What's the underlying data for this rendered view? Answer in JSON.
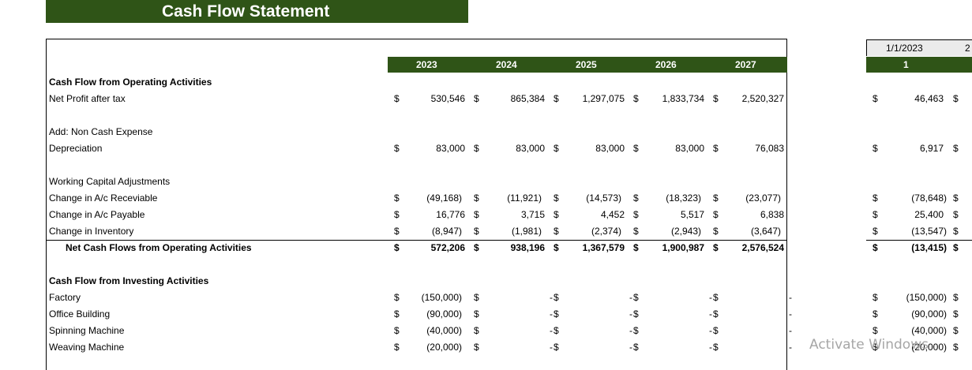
{
  "title": "Cash Flow Statement",
  "years": [
    "2023",
    "2024",
    "2025",
    "2026",
    "2027"
  ],
  "right_panel": {
    "date1": "1/1/2023",
    "date2": "2",
    "period": "1"
  },
  "currency": "$",
  "rows": [
    {
      "label": "Cash Flow from Operating Activities",
      "style": "section",
      "values": null,
      "right": null
    },
    {
      "label": "Net Profit after tax",
      "style": "normal",
      "values": [
        "530,546",
        "865,384",
        "1,297,075",
        "1,833,734",
        "2,520,327"
      ],
      "right": "46,463"
    },
    {
      "label": "",
      "style": "blank",
      "values": null,
      "right": null
    },
    {
      "label": "Add: Non Cash Expense",
      "style": "normal",
      "values": null,
      "right": null
    },
    {
      "label": "Depreciation",
      "style": "normal",
      "values": [
        "83,000",
        "83,000",
        "83,000",
        "83,000",
        "76,083"
      ],
      "right": "6,917"
    },
    {
      "label": "",
      "style": "blank",
      "values": null,
      "right": null
    },
    {
      "label": "Working Capital Adjustments",
      "style": "normal",
      "values": null,
      "right": null
    },
    {
      "label": "Change in A/c Receviable",
      "style": "normal",
      "values": [
        "(49,168)",
        "(11,921)",
        "(14,573)",
        "(18,323)",
        "(23,077)"
      ],
      "right": "(78,648)"
    },
    {
      "label": "Change in A/c Payable",
      "style": "normal",
      "values": [
        "16,776",
        "3,715",
        "4,452",
        "5,517",
        "6,838"
      ],
      "right": "25,400"
    },
    {
      "label": "Change in Inventory",
      "style": "normal",
      "values": [
        "(8,947)",
        "(1,981)",
        "(2,374)",
        "(2,943)",
        "(3,647)"
      ],
      "right": "(13,547)"
    },
    {
      "label": "Net Cash Flows from Operating Activities",
      "style": "total",
      "values": [
        "572,206",
        "938,196",
        "1,367,579",
        "1,900,987",
        "2,576,524"
      ],
      "right": "(13,415)"
    },
    {
      "label": "",
      "style": "blank",
      "values": null,
      "right": null
    },
    {
      "label": "Cash Flow from Investing Activities",
      "style": "section",
      "values": null,
      "right": null
    },
    {
      "label": "Factory",
      "style": "normal",
      "values": [
        "(150,000)",
        "-",
        "-",
        "-",
        "-"
      ],
      "right": "(150,000)"
    },
    {
      "label": "Office Building",
      "style": "normal",
      "values": [
        "(90,000)",
        "-",
        "-",
        "-",
        "-"
      ],
      "right": "(90,000)"
    },
    {
      "label": "Spinning Machine",
      "style": "normal",
      "values": [
        "(40,000)",
        "-",
        "-",
        "-",
        "-"
      ],
      "right": "(40,000)"
    },
    {
      "label": "Weaving Machine",
      "style": "normal",
      "values": [
        "(20,000)",
        "-",
        "-",
        "-",
        "-"
      ],
      "right": "(20,000)"
    }
  ],
  "watermark": "Activate Windows",
  "colors": {
    "header_green": "#2f5417"
  }
}
